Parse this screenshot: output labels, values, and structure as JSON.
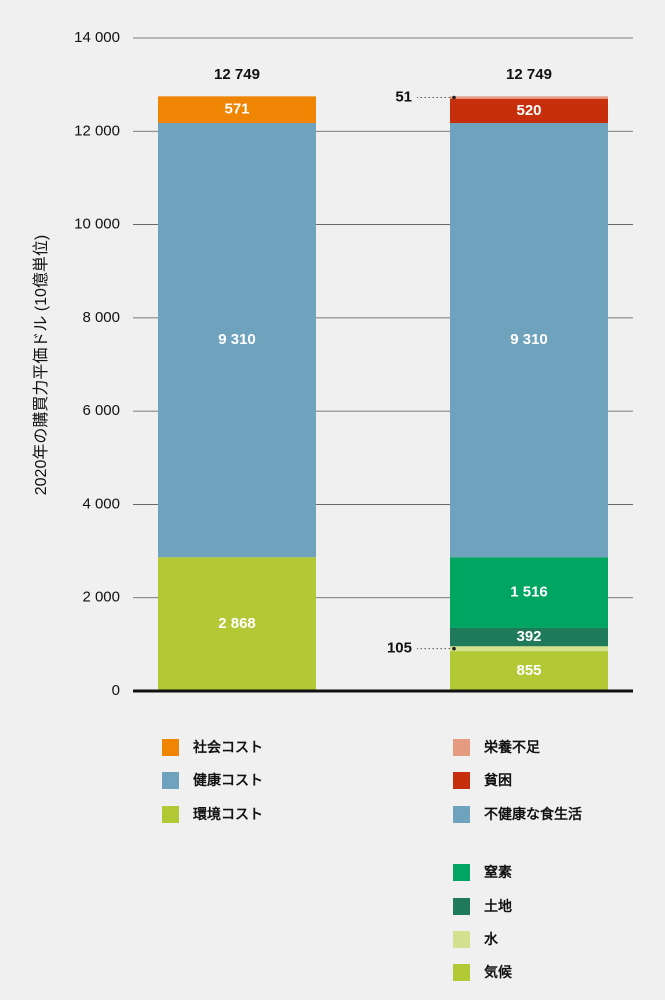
{
  "chart_data": {
    "type": "bar",
    "stacked": true,
    "ylabel": "2020年の購買力平価ドル (10億単位)",
    "ylim": [
      0,
      14000
    ],
    "yticks": [
      0,
      2000,
      4000,
      6000,
      8000,
      10000,
      12000,
      14000
    ],
    "ytick_labels": [
      "0",
      "2 000",
      "4 000",
      "6 000",
      "8 000",
      "10 000",
      "12 000",
      "14 000"
    ],
    "grid": true,
    "bars": [
      {
        "total_label": "12 749",
        "segments": [
          {
            "name": "環境コスト",
            "value": 2868,
            "label": "2 868",
            "color": "#b2c935"
          },
          {
            "name": "健康コスト",
            "value": 9310,
            "label": "9 310",
            "color": "#6fa3bd"
          },
          {
            "name": "社会コスト",
            "value": 571,
            "label": "571",
            "color": "#f08403"
          }
        ]
      },
      {
        "total_label": "12 749",
        "segments": [
          {
            "name": "気候",
            "value": 855,
            "label": "855",
            "color": "#b2c935"
          },
          {
            "name": "水",
            "value": 105,
            "label": "105",
            "color": "#d3e08d",
            "callout": true
          },
          {
            "name": "土地",
            "value": 392,
            "label": "392",
            "color": "#1f7a5c"
          },
          {
            "name": "窒素",
            "value": 1516,
            "label": "1 516",
            "color": "#00a562"
          },
          {
            "name": "不健康な食生活",
            "value": 9310,
            "label": "9 310",
            "color": "#6fa3bd"
          },
          {
            "name": "貧困",
            "value": 520,
            "label": "520",
            "color": "#c72e0c"
          },
          {
            "name": "栄養不足",
            "value": 51,
            "label": "51",
            "color": "#e59b80",
            "callout": true
          }
        ]
      }
    ],
    "legend_left": [
      {
        "label": "社会コスト",
        "color": "#f08403"
      },
      {
        "label": "健康コスト",
        "color": "#6fa3bd"
      },
      {
        "label": "環境コスト",
        "color": "#b2c935"
      }
    ],
    "legend_right": [
      {
        "label": "栄養不足",
        "color": "#e59b80"
      },
      {
        "label": "貧困",
        "color": "#c72e0c"
      },
      {
        "label": "不健康な食生活",
        "color": "#6fa3bd"
      },
      {
        "label": "窒素",
        "color": "#00a562"
      },
      {
        "label": "土地",
        "color": "#1f7a5c"
      },
      {
        "label": "水",
        "color": "#d3e08d"
      },
      {
        "label": "気候",
        "color": "#b2c935"
      }
    ]
  }
}
